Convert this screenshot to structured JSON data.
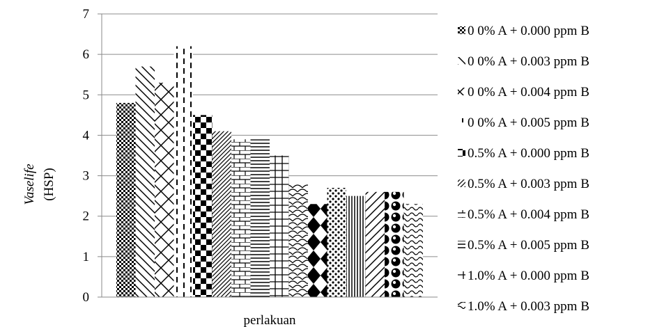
{
  "chart_data": {
    "type": "bar",
    "xlabel": "perlakuan",
    "ylabel_italic": "Vaselife",
    "ylabel": "(HSP)",
    "ylim": [
      0,
      7
    ],
    "yticks": [
      "0",
      "1",
      "2",
      "3",
      "4",
      "5",
      "6",
      "7"
    ],
    "grid": true,
    "legend_position": "right",
    "series": [
      {
        "name": "0 0% A + 0.000 ppm B",
        "value": 4.8,
        "pattern": "checker-small"
      },
      {
        "name": "0 0% A + 0.003 ppm B",
        "value": 5.7,
        "pattern": "diag-wide-right"
      },
      {
        "name": "0 0% A + 0.004 ppm B",
        "value": 5.3,
        "pattern": "diag-cross"
      },
      {
        "name": "0 0% A + 0.005 ppm B",
        "value": 6.2,
        "pattern": "dashed-vertical"
      },
      {
        "name": "0.5% A + 0.000 ppm B",
        "value": 4.5,
        "pattern": "checker-large"
      },
      {
        "name": "0.5% A + 0.003 ppm B",
        "value": 4.1,
        "pattern": "diag-narrow-right"
      },
      {
        "name": "0.5% A + 0.004 ppm B",
        "value": 3.9,
        "pattern": "brick"
      },
      {
        "name": "0.5% A + 0.005 ppm B",
        "value": 3.9,
        "pattern": "horizontal"
      },
      {
        "name": "1.0% A + 0.000 ppm B",
        "value": 3.5,
        "pattern": "cross-plus"
      },
      {
        "name": "1.0% A + 0.003 ppm B",
        "value": 2.8,
        "pattern": "scale"
      },
      {
        "value": 2.3,
        "pattern": "diamond"
      },
      {
        "value": 2.7,
        "pattern": "dots"
      },
      {
        "value": 2.5,
        "pattern": "vertical"
      },
      {
        "value": 2.6,
        "pattern": "diag-wide-left"
      },
      {
        "value": 2.6,
        "pattern": "sphere"
      },
      {
        "value": 2.3,
        "pattern": "wave"
      }
    ]
  },
  "legend": [
    {
      "marker": "checker-small",
      "label": "0 0% A + 0.000 ppm B"
    },
    {
      "marker": "diag-wide-right",
      "label": "0 0% A + 0.003 ppm B"
    },
    {
      "marker": "diag-cross",
      "label": "0 0% A + 0.004 ppm B"
    },
    {
      "marker": "dashed-vertical",
      "label": "0 0% A + 0.005 ppm B"
    },
    {
      "marker": "checker-large",
      "label": "0.5% A + 0.000 ppm B"
    },
    {
      "marker": "diag-narrow-right",
      "label": "0.5% A + 0.003 ppm B"
    },
    {
      "marker": "brick",
      "label": "0.5% A + 0.004 ppm B"
    },
    {
      "marker": "horizontal",
      "label": "0.5% A + 0.005 ppm B"
    },
    {
      "marker": "cross-plus",
      "label": "1.0% A + 0.000 ppm B"
    },
    {
      "marker": "scale",
      "label": "1.0% A + 0.003 ppm B"
    }
  ]
}
